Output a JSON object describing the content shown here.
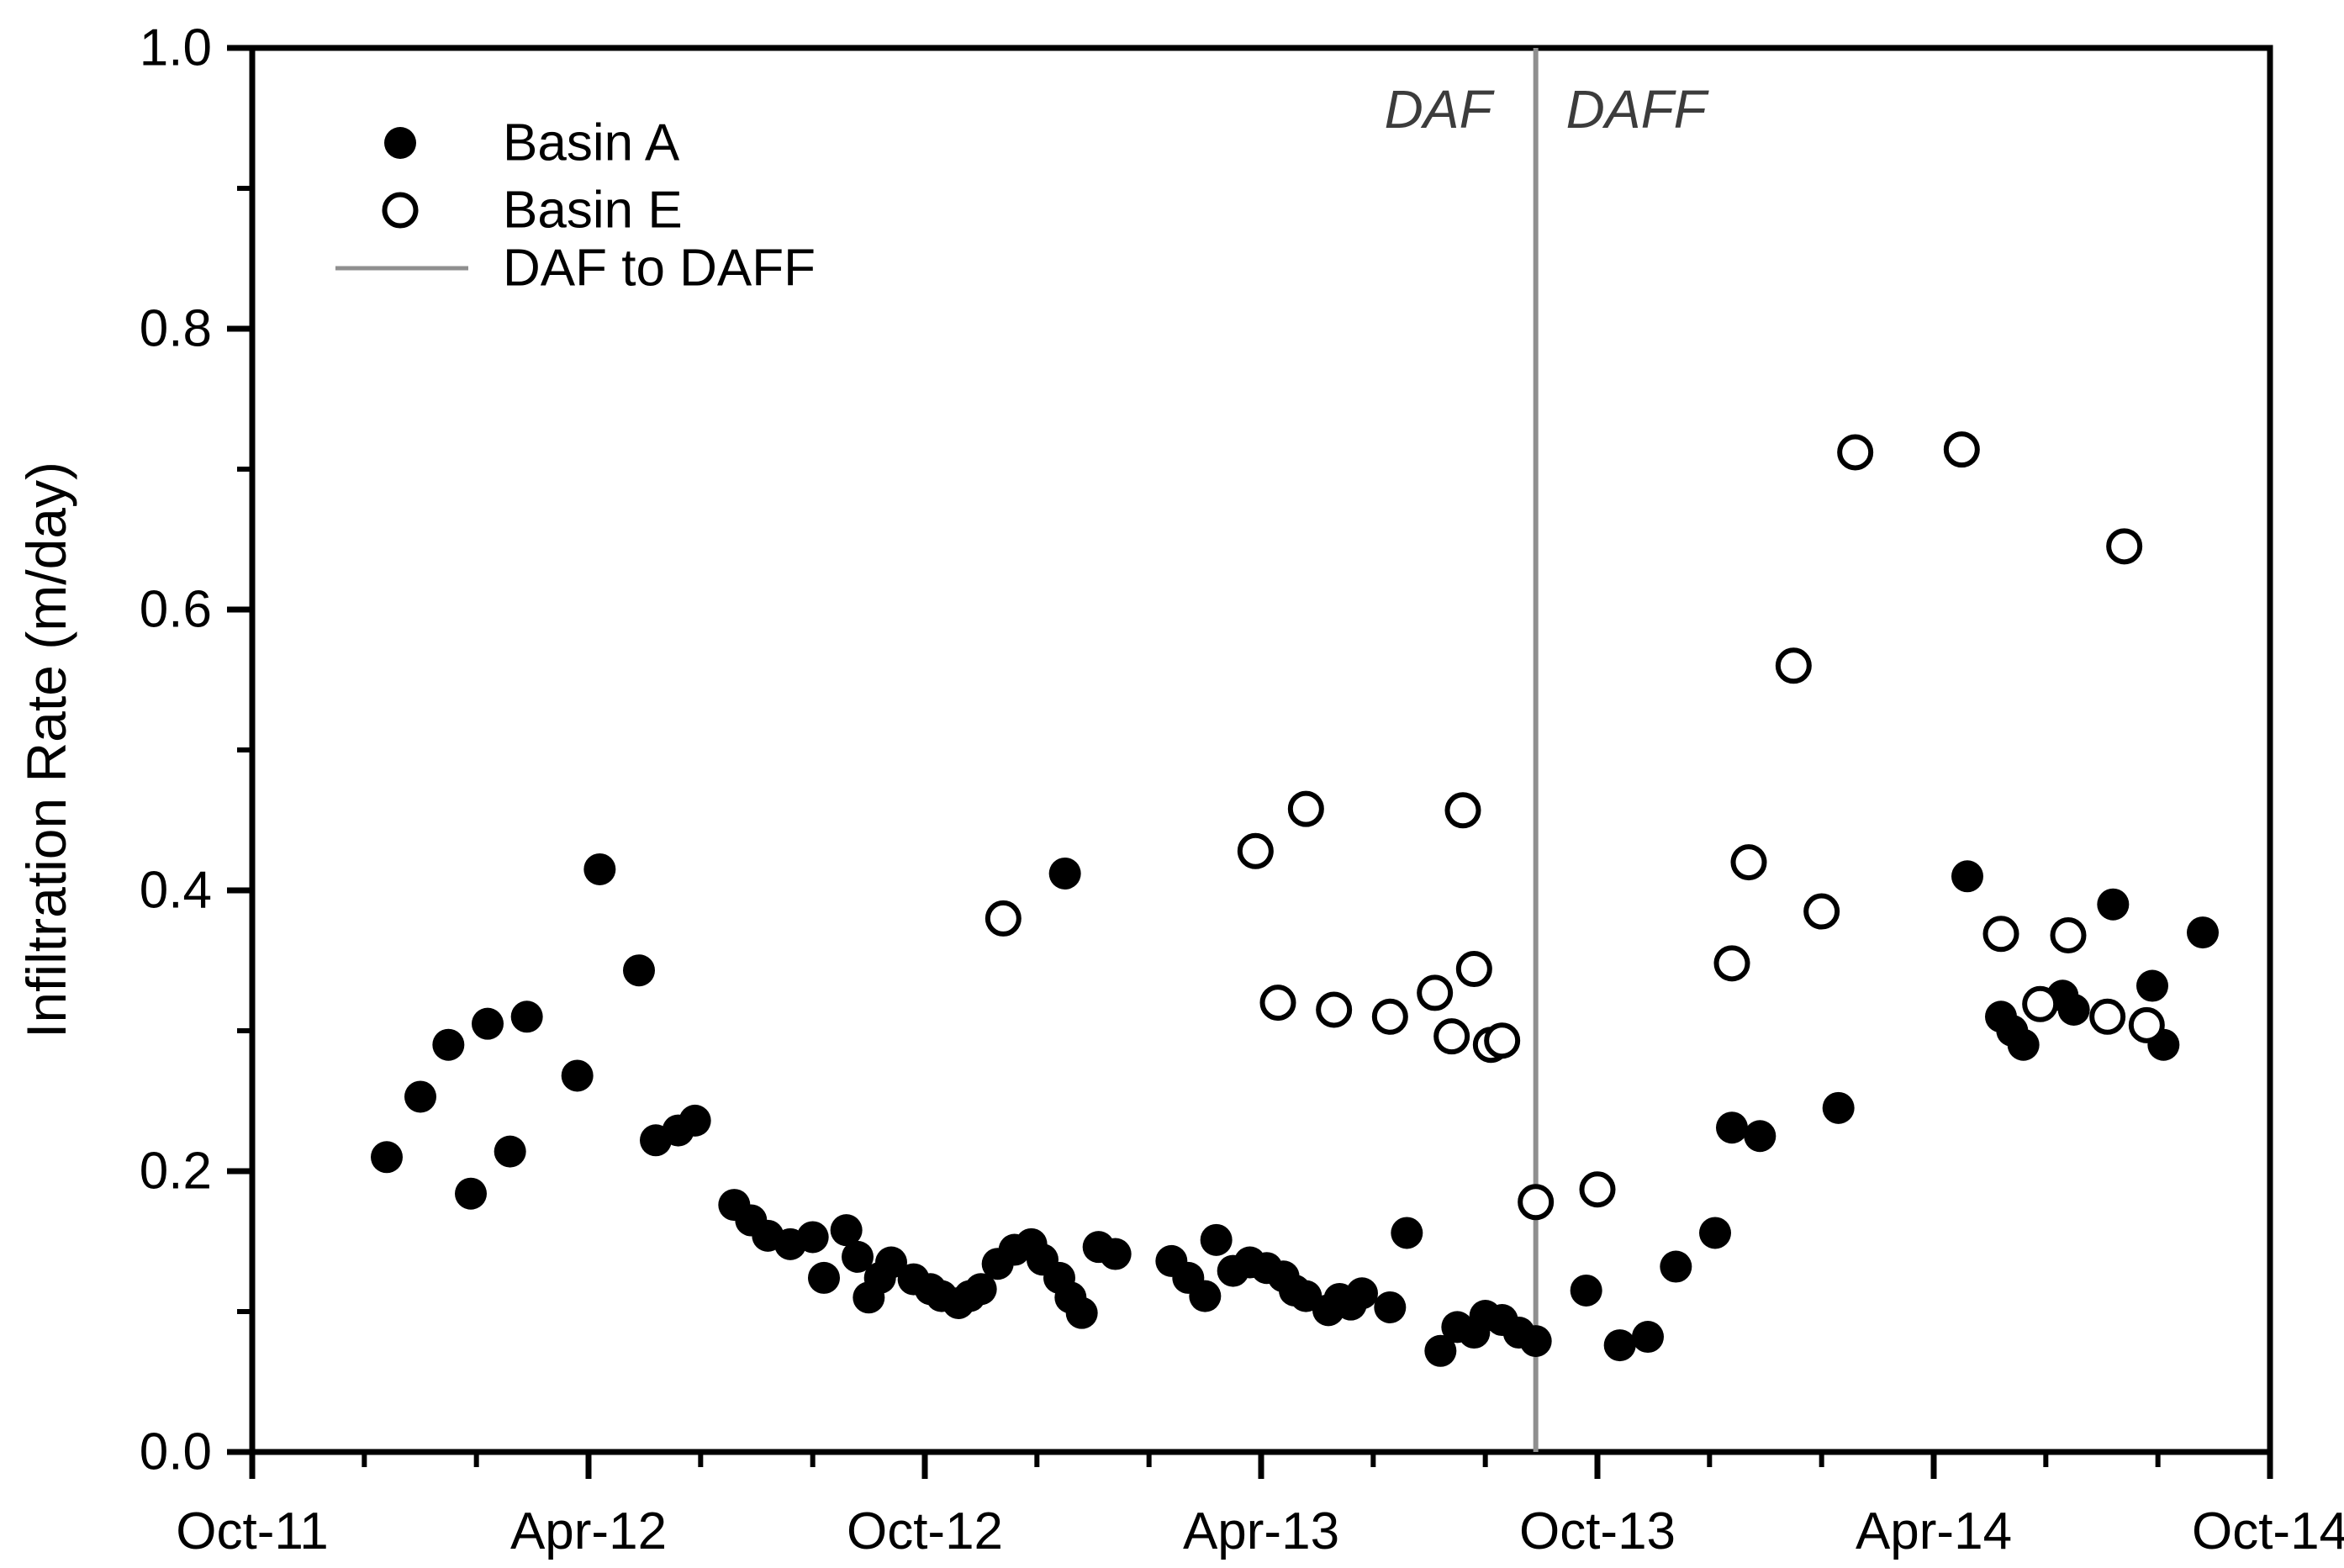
{
  "figure": {
    "background": "#ffffff",
    "annotations": {
      "daf": "DAF",
      "daff": "DAFF"
    },
    "colors": {
      "marker": "#000000",
      "daf_line": "#8f8f8f",
      "annotation_text": "#3c3c3c",
      "axis": "#000000",
      "background": "#ffffff"
    }
  },
  "chart_data": {
    "type": "scatter",
    "title": "",
    "xlabel": "",
    "ylabel": "Infiltration Rate (m/day)",
    "x_unit": "months since Oct-2011",
    "xlim": [
      0,
      36
    ],
    "ylim": [
      0.0,
      1.0
    ],
    "grid": false,
    "x_major_ticks": [
      {
        "x": 0,
        "label": "Oct-11"
      },
      {
        "x": 6,
        "label": "Apr-12"
      },
      {
        "x": 12,
        "label": "Oct-12"
      },
      {
        "x": 18,
        "label": "Apr-13"
      },
      {
        "x": 24,
        "label": "Oct-13"
      },
      {
        "x": 30,
        "label": "Apr-14"
      },
      {
        "x": 36,
        "label": "Oct-14"
      }
    ],
    "x_minor_ticks": [
      2,
      4,
      8,
      10,
      14,
      16,
      20,
      22,
      26,
      28,
      32,
      34
    ],
    "y_major_ticks": [
      {
        "v": 0.0,
        "label": "0.0"
      },
      {
        "v": 0.2,
        "label": "0.2"
      },
      {
        "v": 0.4,
        "label": "0.4"
      },
      {
        "v": 0.6,
        "label": "0.6"
      },
      {
        "v": 0.8,
        "label": "0.8"
      },
      {
        "v": 1.0,
        "label": "1.0"
      }
    ],
    "y_minor_ticks": [
      0.1,
      0.3,
      0.5,
      0.7,
      0.9
    ],
    "daf_transition_x": 22.9,
    "daf_transition_label": "DAF to DAFF",
    "legend": {
      "position": "top-left",
      "entries": [
        {
          "label": "Basin A",
          "marker": "filled-circle"
        },
        {
          "label": "Basin E",
          "marker": "open-circle"
        },
        {
          "label": "DAF to DAFF",
          "marker": "gray-line"
        }
      ]
    },
    "series": [
      {
        "name": "Basin A",
        "marker": "filled-circle",
        "points": [
          [
            2.4,
            0.21
          ],
          [
            3.0,
            0.253
          ],
          [
            3.5,
            0.29
          ],
          [
            3.9,
            0.184
          ],
          [
            4.2,
            0.305
          ],
          [
            4.6,
            0.214
          ],
          [
            4.9,
            0.31
          ],
          [
            5.8,
            0.268
          ],
          [
            6.2,
            0.415
          ],
          [
            6.9,
            0.343
          ],
          [
            7.2,
            0.222
          ],
          [
            7.6,
            0.229
          ],
          [
            7.9,
            0.236
          ],
          [
            8.6,
            0.176
          ],
          [
            8.9,
            0.165
          ],
          [
            9.2,
            0.154
          ],
          [
            9.6,
            0.148
          ],
          [
            10.0,
            0.153
          ],
          [
            10.2,
            0.124
          ],
          [
            10.6,
            0.158
          ],
          [
            10.8,
            0.139
          ],
          [
            11.0,
            0.11
          ],
          [
            11.2,
            0.124
          ],
          [
            11.4,
            0.135
          ],
          [
            11.8,
            0.123
          ],
          [
            12.1,
            0.116
          ],
          [
            12.3,
            0.111
          ],
          [
            12.6,
            0.106
          ],
          [
            12.8,
            0.111
          ],
          [
            13.0,
            0.116
          ],
          [
            13.3,
            0.134
          ],
          [
            13.6,
            0.144
          ],
          [
            13.9,
            0.148
          ],
          [
            14.1,
            0.137
          ],
          [
            14.4,
            0.124
          ],
          [
            14.6,
            0.11
          ],
          [
            14.8,
            0.099
          ],
          [
            14.5,
            0.412
          ],
          [
            15.1,
            0.146
          ],
          [
            15.4,
            0.141
          ],
          [
            16.4,
            0.136
          ],
          [
            16.7,
            0.124
          ],
          [
            17.0,
            0.111
          ],
          [
            17.2,
            0.151
          ],
          [
            17.5,
            0.129
          ],
          [
            17.8,
            0.135
          ],
          [
            18.1,
            0.131
          ],
          [
            18.4,
            0.125
          ],
          [
            18.6,
            0.115
          ],
          [
            18.8,
            0.111
          ],
          [
            19.2,
            0.101
          ],
          [
            19.4,
            0.109
          ],
          [
            19.6,
            0.105
          ],
          [
            19.8,
            0.113
          ],
          [
            20.3,
            0.103
          ],
          [
            20.6,
            0.156
          ],
          [
            21.2,
            0.072
          ],
          [
            21.5,
            0.089
          ],
          [
            21.8,
            0.085
          ],
          [
            22.0,
            0.097
          ],
          [
            22.3,
            0.094
          ],
          [
            22.6,
            0.085
          ],
          [
            22.9,
            0.079
          ],
          [
            23.8,
            0.115
          ],
          [
            24.4,
            0.076
          ],
          [
            24.9,
            0.082
          ],
          [
            25.4,
            0.132
          ],
          [
            26.1,
            0.156
          ],
          [
            26.4,
            0.231
          ],
          [
            26.9,
            0.225
          ],
          [
            28.3,
            0.245
          ],
          [
            30.6,
            0.41
          ],
          [
            31.2,
            0.31
          ],
          [
            31.4,
            0.3
          ],
          [
            31.6,
            0.29
          ],
          [
            32.3,
            0.325
          ],
          [
            32.5,
            0.315
          ],
          [
            33.2,
            0.39
          ],
          [
            33.9,
            0.332
          ],
          [
            34.1,
            0.29
          ],
          [
            34.8,
            0.37
          ]
        ]
      },
      {
        "name": "Basin E",
        "marker": "open-circle",
        "points": [
          [
            13.4,
            0.38
          ],
          [
            17.9,
            0.428
          ],
          [
            18.3,
            0.32
          ],
          [
            18.8,
            0.458
          ],
          [
            19.3,
            0.315
          ],
          [
            20.3,
            0.31
          ],
          [
            21.1,
            0.327
          ],
          [
            21.4,
            0.296
          ],
          [
            21.6,
            0.457
          ],
          [
            21.8,
            0.344
          ],
          [
            22.1,
            0.29
          ],
          [
            22.3,
            0.293
          ],
          [
            22.9,
            0.178
          ],
          [
            24.0,
            0.187
          ],
          [
            26.4,
            0.348
          ],
          [
            26.7,
            0.42
          ],
          [
            27.5,
            0.56
          ],
          [
            28.0,
            0.385
          ],
          [
            28.6,
            0.712
          ],
          [
            30.5,
            0.714
          ],
          [
            31.2,
            0.369
          ],
          [
            31.9,
            0.319
          ],
          [
            32.4,
            0.368
          ],
          [
            33.1,
            0.31
          ],
          [
            33.4,
            0.645
          ],
          [
            33.8,
            0.304
          ]
        ]
      }
    ]
  }
}
